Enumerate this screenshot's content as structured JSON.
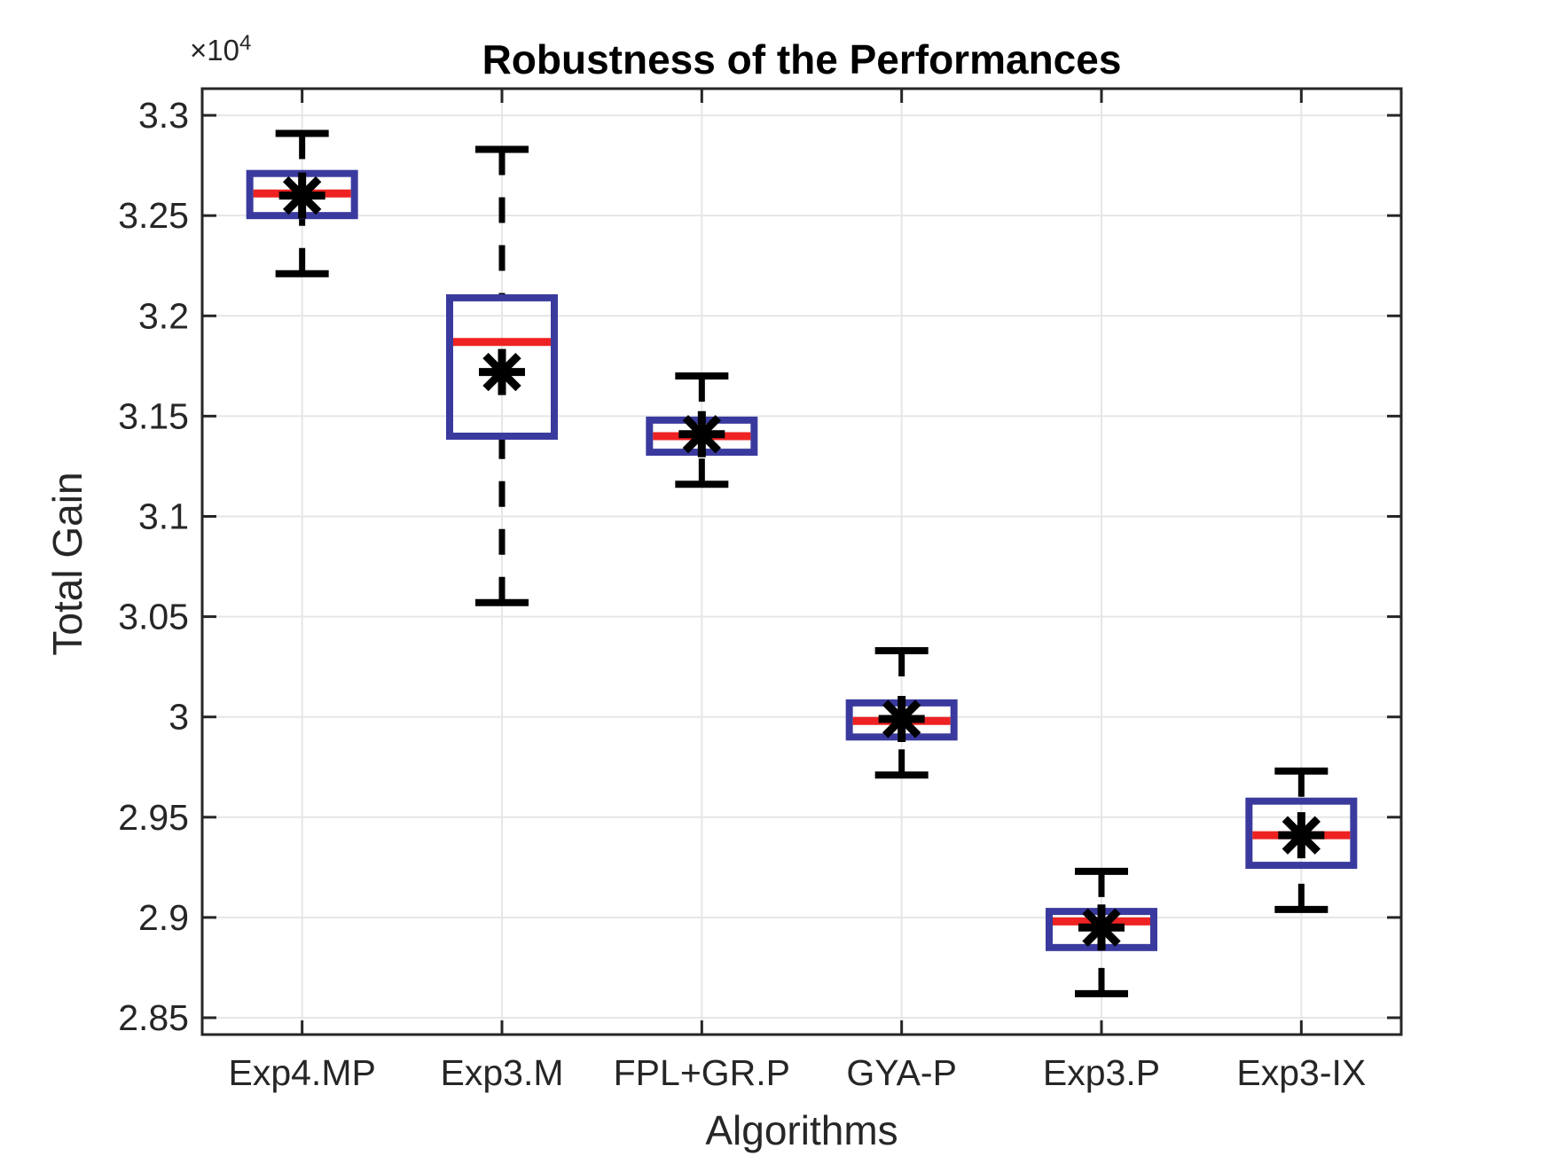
{
  "figure": {
    "title": "Robustness of the Performances",
    "x_axis_label": "Algorithms",
    "y_axis_label": "Total Gain",
    "y_axis_multiplier_base": "×10",
    "y_axis_multiplier_exponent": "4"
  },
  "chart_data": {
    "type": "boxplot",
    "title": "Robustness of the Performances",
    "xlabel": "Algorithms",
    "ylabel": "Total Gain",
    "y_unit": "values are in units of 10^4 total gain (axis multiplier ×10^4)",
    "ylim": [
      2.8416,
      3.3133
    ],
    "yticks": [
      "2.85",
      "2.9",
      "2.95",
      "3",
      "3.05",
      "3.1",
      "3.15",
      "3.2",
      "3.25",
      "3.3"
    ],
    "grid": true,
    "categories": [
      "Exp4.MP",
      "Exp3.M",
      "FPL+GR.P",
      "GYA-P",
      "Exp3.P",
      "Exp3-IX"
    ],
    "series": [
      {
        "name": "Exp4.MP",
        "whisker_low": 3.221,
        "q1": 3.25,
        "median": 3.261,
        "q3": 3.271,
        "whisker_high": 3.291,
        "mean": 3.26
      },
      {
        "name": "Exp3.M",
        "whisker_low": 3.057,
        "q1": 3.14,
        "median": 3.187,
        "q3": 3.209,
        "whisker_high": 3.283,
        "mean": 3.172
      },
      {
        "name": "FPL+GR.P",
        "whisker_low": 3.116,
        "q1": 3.132,
        "median": 3.14,
        "q3": 3.148,
        "whisker_high": 3.17,
        "mean": 3.141
      },
      {
        "name": "GYA-P",
        "whisker_low": 2.971,
        "q1": 2.99,
        "median": 2.998,
        "q3": 3.007,
        "whisker_high": 3.033,
        "mean": 2.999
      },
      {
        "name": "Exp3.P",
        "whisker_low": 2.862,
        "q1": 2.885,
        "median": 2.898,
        "q3": 2.903,
        "whisker_high": 2.923,
        "mean": 2.895
      },
      {
        "name": "Exp3-IX",
        "whisker_low": 2.904,
        "q1": 2.926,
        "median": 2.941,
        "q3": 2.958,
        "whisker_high": 2.973,
        "mean": 2.941
      }
    ],
    "colors": {
      "box": "#3A3A9E",
      "median": "#EE2222",
      "whisker": "#000000",
      "cap": "#000000",
      "mean_marker": "#000000",
      "grid": "#E6E6E6",
      "axis": "#262626",
      "background": "#FFFFFF"
    }
  }
}
